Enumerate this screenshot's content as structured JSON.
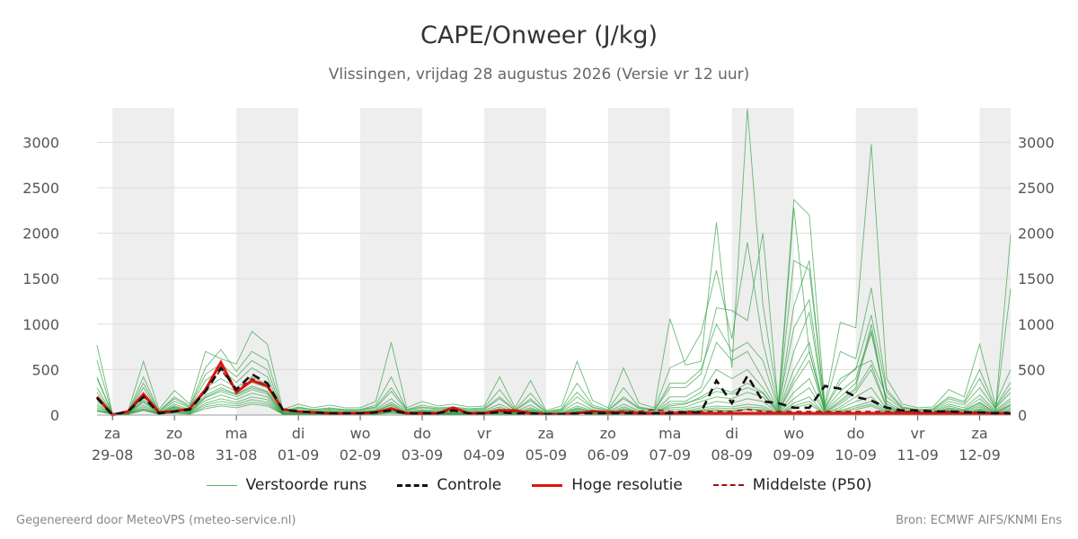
{
  "title": "CAPE/Onweer (J/kg)",
  "subtitle": "Vlissingen, vrijdag 28 augustus 2026 (Versie vr 12 uur)",
  "footer_left": "Gegenereerd door MeteoVPS (meteo-service.nl)",
  "footer_right": "Bron: ECMWF AIFS/KNMI Ens",
  "colors": {
    "ensemble": "#2e9e3e",
    "control": "#111111",
    "hires": "#e0140c",
    "median": "#a0140c",
    "shade": "#eeeeee",
    "grid": "#dddddd"
  },
  "chart_data": {
    "type": "line",
    "ylim": [
      0,
      3380
    ],
    "yticks": [
      0,
      500,
      1000,
      1500,
      2000,
      2500,
      3000
    ],
    "x_start": "2026-08-28 18:00",
    "x_end": "2026-09-12 12:00",
    "x_step_hours": 6,
    "grid": true,
    "legend_position": "bottom",
    "day_ticks": [
      {
        "day": "za",
        "date": "29-08"
      },
      {
        "day": "zo",
        "date": "30-08"
      },
      {
        "day": "ma",
        "date": "31-08"
      },
      {
        "day": "di",
        "date": "01-09"
      },
      {
        "day": "wo",
        "date": "02-09"
      },
      {
        "day": "do",
        "date": "03-09"
      },
      {
        "day": "vr",
        "date": "04-09"
      },
      {
        "day": "za",
        "date": "05-09"
      },
      {
        "day": "zo",
        "date": "06-09"
      },
      {
        "day": "ma",
        "date": "07-09"
      },
      {
        "day": "di",
        "date": "08-09"
      },
      {
        "day": "wo",
        "date": "09-09"
      },
      {
        "day": "do",
        "date": "10-09"
      },
      {
        "day": "vr",
        "date": "11-09"
      },
      {
        "day": "za",
        "date": "12-09"
      }
    ],
    "shaded_days": [
      "29-08",
      "31-08",
      "02-09",
      "04-09",
      "06-09",
      "08-09",
      "10-09",
      "12-09"
    ],
    "legend": [
      "Verstoorde runs",
      "Controle",
      "Hoge resolutie",
      "Middelste (P50)"
    ],
    "series": [
      {
        "name": "Controle",
        "style": "dashed",
        "values": [
          190,
          0,
          40,
          200,
          20,
          40,
          60,
          260,
          520,
          280,
          450,
          350,
          60,
          40,
          30,
          20,
          20,
          20,
          30,
          50,
          20,
          20,
          20,
          50,
          20,
          20,
          30,
          20,
          20,
          10,
          10,
          20,
          20,
          20,
          20,
          20,
          20,
          20,
          30,
          30,
          380,
          130,
          430,
          150,
          130,
          80,
          80,
          320,
          290,
          200,
          160,
          80,
          50,
          50,
          40,
          40,
          30,
          30,
          20,
          20
        ]
      },
      {
        "name": "Hoge resolutie",
        "style": "solid",
        "values": [
          200,
          0,
          40,
          230,
          30,
          40,
          70,
          280,
          580,
          250,
          380,
          320,
          60,
          40,
          30,
          20,
          20,
          20,
          30,
          70,
          20,
          20,
          20,
          80,
          20,
          20,
          50,
          50,
          20,
          10,
          10,
          20,
          40,
          30,
          30,
          20,
          20,
          20,
          20,
          20,
          20,
          20,
          20,
          20,
          20,
          20,
          20,
          20,
          20,
          20,
          20,
          20,
          20,
          20,
          20,
          20,
          20,
          20,
          20,
          20
        ]
      },
      {
        "name": "Middelste (P50)",
        "style": "dashed",
        "values": [
          180,
          0,
          40,
          210,
          30,
          40,
          70,
          260,
          500,
          270,
          400,
          320,
          60,
          40,
          30,
          20,
          20,
          20,
          40,
          60,
          20,
          20,
          20,
          60,
          20,
          20,
          40,
          40,
          20,
          10,
          10,
          20,
          40,
          40,
          40,
          40,
          60,
          40,
          40,
          40,
          40,
          40,
          60,
          40,
          40,
          40,
          40,
          40,
          40,
          40,
          40,
          40,
          40,
          40,
          40,
          40,
          40,
          30,
          30,
          30
        ]
      },
      {
        "name": "Verstoorde runs",
        "values": [
          770,
          20,
          40,
          590,
          60,
          270,
          120,
          700,
          620,
          560,
          920,
          780,
          60,
          120,
          80,
          110,
          80,
          80,
          150,
          800,
          80,
          150,
          100,
          120,
          90,
          100,
          420,
          80,
          380,
          50,
          100,
          590,
          160,
          80,
          520,
          130,
          80,
          1060,
          550,
          590,
          2120,
          520,
          3370,
          1220,
          130,
          2370,
          2200,
          120,
          1020,
          960,
          2980,
          400,
          120,
          80,
          90,
          280,
          200,
          780,
          120,
          500
        ]
      },
      {
        "name": "Verstoorde runs",
        "values": [
          600,
          10,
          30,
          420,
          40,
          200,
          100,
          520,
          720,
          480,
          700,
          600,
          40,
          90,
          60,
          80,
          60,
          60,
          110,
          420,
          60,
          110,
          80,
          90,
          70,
          80,
          280,
          60,
          240,
          40,
          70,
          350,
          110,
          60,
          300,
          90,
          60,
          520,
          600,
          900,
          1590,
          840,
          1900,
          800,
          100,
          1700,
          1600,
          90,
          700,
          620,
          1400,
          280,
          90,
          60,
          70,
          200,
          150,
          500,
          90,
          360
        ]
      },
      {
        "name": "Verstoorde runs",
        "values": [
          420,
          10,
          30,
          300,
          30,
          150,
          80,
          380,
          500,
          360,
          520,
          420,
          30,
          70,
          50,
          60,
          50,
          50,
          80,
          260,
          50,
          80,
          60,
          70,
          50,
          60,
          180,
          50,
          160,
          30,
          50,
          200,
          80,
          50,
          180,
          70,
          50,
          300,
          300,
          450,
          1180,
          1150,
          1040,
          2000,
          90,
          960,
          1270,
          70,
          350,
          520,
          600,
          200,
          70,
          50,
          50,
          150,
          110,
          300,
          70,
          250
        ]
      },
      {
        "name": "Verstoorde runs",
        "values": [
          300,
          10,
          20,
          240,
          20,
          120,
          60,
          300,
          400,
          300,
          420,
          340,
          20,
          50,
          40,
          50,
          40,
          40,
          60,
          180,
          40,
          60,
          50,
          50,
          40,
          50,
          120,
          40,
          110,
          20,
          40,
          140,
          60,
          40,
          120,
          50,
          40,
          200,
          200,
          300,
          800,
          600,
          700,
          400,
          60,
          2280,
          700,
          60,
          260,
          400,
          930,
          150,
          50,
          40,
          40,
          120,
          80,
          220,
          50,
          180
        ]
      },
      {
        "name": "Verstoorde runs",
        "values": [
          250,
          10,
          20,
          200,
          20,
          100,
          50,
          260,
          340,
          260,
          360,
          300,
          20,
          40,
          30,
          40,
          30,
          30,
          50,
          140,
          30,
          50,
          40,
          40,
          30,
          40,
          90,
          30,
          80,
          20,
          30,
          100,
          50,
          30,
          90,
          40,
          30,
          150,
          150,
          250,
          500,
          400,
          500,
          300,
          50,
          700,
          1130,
          50,
          200,
          350,
          900,
          120,
          40,
          30,
          30,
          100,
          60,
          180,
          40,
          150
        ]
      },
      {
        "name": "Verstoorde runs",
        "values": [
          200,
          10,
          20,
          170,
          20,
          90,
          40,
          220,
          300,
          230,
          320,
          260,
          20,
          30,
          20,
          30,
          20,
          20,
          40,
          110,
          20,
          40,
          30,
          30,
          20,
          30,
          70,
          20,
          60,
          20,
          20,
          80,
          40,
          20,
          70,
          30,
          20,
          100,
          120,
          200,
          300,
          250,
          350,
          250,
          40,
          500,
          800,
          40,
          160,
          300,
          1000,
          100,
          30,
          20,
          20,
          80,
          50,
          140,
          30,
          120
        ]
      },
      {
        "name": "Verstoorde runs",
        "values": [
          150,
          10,
          10,
          140,
          10,
          70,
          30,
          190,
          260,
          200,
          280,
          230,
          10,
          20,
          20,
          20,
          20,
          20,
          30,
          90,
          20,
          30,
          20,
          20,
          20,
          20,
          50,
          20,
          50,
          10,
          20,
          60,
          30,
          20,
          50,
          20,
          20,
          80,
          90,
          150,
          200,
          180,
          250,
          200,
          30,
          350,
          600,
          30,
          120,
          250,
          500,
          80,
          20,
          20,
          20,
          60,
          40,
          110,
          20,
          100
        ]
      },
      {
        "name": "Verstoorde runs",
        "values": [
          100,
          10,
          10,
          110,
          10,
          60,
          30,
          160,
          220,
          170,
          240,
          200,
          10,
          20,
          10,
          20,
          10,
          10,
          20,
          70,
          10,
          20,
          20,
          20,
          10,
          20,
          40,
          10,
          40,
          10,
          10,
          50,
          20,
          10,
          40,
          20,
          10,
          60,
          70,
          100,
          150,
          130,
          180,
          150,
          20,
          250,
          400,
          20,
          90,
          200,
          300,
          60,
          20,
          10,
          10,
          50,
          30,
          90,
          20,
          80
        ]
      },
      {
        "name": "Verstoorde runs",
        "values": [
          80,
          10,
          10,
          90,
          10,
          50,
          20,
          130,
          180,
          140,
          200,
          170,
          10,
          10,
          10,
          10,
          10,
          10,
          20,
          50,
          10,
          20,
          10,
          10,
          10,
          10,
          30,
          10,
          30,
          10,
          10,
          40,
          20,
          10,
          30,
          10,
          10,
          40,
          50,
          80,
          100,
          90,
          120,
          100,
          20,
          180,
          300,
          20,
          70,
          150,
          200,
          50,
          10,
          10,
          10,
          40,
          20,
          70,
          10,
          60
        ]
      },
      {
        "name": "Verstoorde runs",
        "values": [
          60,
          10,
          10,
          70,
          10,
          40,
          20,
          110,
          150,
          120,
          170,
          140,
          10,
          10,
          10,
          10,
          10,
          10,
          10,
          40,
          10,
          10,
          10,
          10,
          10,
          10,
          20,
          10,
          20,
          10,
          10,
          30,
          10,
          10,
          20,
          10,
          10,
          30,
          40,
          60,
          80,
          70,
          90,
          80,
          10,
          130,
          200,
          10,
          50,
          100,
          150,
          40,
          10,
          10,
          10,
          30,
          20,
          60,
          10,
          50
        ]
      },
      {
        "name": "Verstoorde runs",
        "values": [
          400,
          10,
          30,
          350,
          40,
          180,
          90,
          450,
          560,
          420,
          600,
          500,
          30,
          80,
          60,
          70,
          60,
          60,
          90,
          300,
          60,
          90,
          70,
          80,
          60,
          70,
          200,
          50,
          180,
          30,
          60,
          250,
          90,
          50,
          200,
          80,
          50,
          350,
          350,
          500,
          1000,
          700,
          800,
          600,
          70,
          1200,
          1700,
          80,
          400,
          500,
          1100,
          250,
          80,
          60,
          60,
          180,
          130,
          400,
          80,
          300
        ]
      },
      {
        "name": "Verstoorde runs",
        "values": [
          120,
          10,
          20,
          150,
          20,
          80,
          40,
          200,
          280,
          220,
          300,
          250,
          20,
          30,
          20,
          30,
          20,
          20,
          40,
          120,
          20,
          40,
          30,
          30,
          20,
          30,
          60,
          20,
          60,
          20,
          20,
          70,
          40,
          20,
          60,
          30,
          20,
          120,
          130,
          180,
          260,
          230,
          300,
          240,
          30,
          400,
          700,
          30,
          140,
          280,
          550,
          90,
          30,
          20,
          20,
          70,
          50,
          130,
          30,
          110
        ]
      },
      {
        "name": "Verstoorde runs",
        "values": [
          50,
          10,
          10,
          60,
          10,
          30,
          10,
          90,
          120,
          100,
          140,
          120,
          10,
          10,
          10,
          10,
          10,
          10,
          10,
          30,
          10,
          10,
          10,
          10,
          10,
          10,
          20,
          10,
          20,
          10,
          10,
          20,
          10,
          10,
          20,
          10,
          10,
          20,
          30,
          50,
          60,
          50,
          70,
          60,
          10,
          100,
          150,
          10,
          40,
          80,
          120,
          30,
          10,
          10,
          10,
          20,
          10,
          50,
          10,
          1980
        ]
      },
      {
        "name": "Verstoorde runs",
        "values": [
          40,
          10,
          10,
          50,
          10,
          20,
          10,
          70,
          100,
          80,
          120,
          100,
          10,
          10,
          10,
          10,
          10,
          10,
          10,
          20,
          10,
          10,
          10,
          10,
          10,
          10,
          10,
          10,
          10,
          10,
          10,
          20,
          10,
          10,
          10,
          10,
          10,
          20,
          20,
          40,
          50,
          40,
          60,
          50,
          10,
          80,
          120,
          10,
          30,
          60,
          100,
          20,
          10,
          10,
          10,
          20,
          10,
          40,
          10,
          1390
        ]
      }
    ]
  }
}
